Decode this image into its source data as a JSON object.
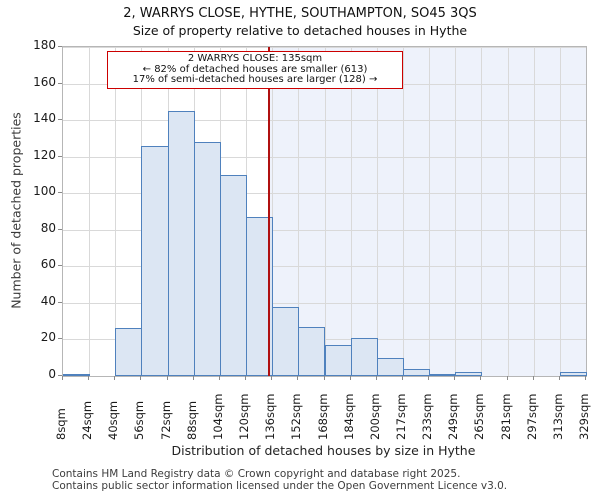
{
  "header": {
    "title": "2, WARRYS CLOSE, HYTHE, SOUTHAMPTON, SO45 3QS",
    "subtitle": "Size of property relative to detached houses in Hythe"
  },
  "annotation": {
    "lines": [
      "2 WARRYS CLOSE: 135sqm",
      "← 82% of detached houses are smaller (613)",
      "17% of semi-detached houses are larger (128) →"
    ]
  },
  "footer": {
    "line1": "Contains HM Land Registry data © Crown copyright and database right 2025.",
    "line2": "Contains public sector information licensed under the Open Government Licence v3.0."
  },
  "chart_data": {
    "type": "bar",
    "title": "2, WARRYS CLOSE, HYTHE, SOUTHAMPTON, SO45 3QS",
    "subtitle": "Size of property relative to detached houses in Hythe",
    "xlabel": "Distribution of detached houses by size in Hythe",
    "ylabel": "Number of detached properties",
    "bin_edges": [
      "8sqm",
      "24sqm",
      "40sqm",
      "56sqm",
      "72sqm",
      "88sqm",
      "104sqm",
      "120sqm",
      "136sqm",
      "152sqm",
      "168sqm",
      "184sqm",
      "200sqm",
      "217sqm",
      "233sqm",
      "249sqm",
      "265sqm",
      "281sqm",
      "297sqm",
      "313sqm",
      "329sqm"
    ],
    "values": [
      1,
      0,
      26,
      126,
      145,
      128,
      110,
      87,
      38,
      27,
      17,
      21,
      10,
      4,
      1,
      2,
      0,
      0,
      0,
      2
    ],
    "ylim": [
      0,
      180
    ],
    "ytick_step": 20,
    "grid": true,
    "marker": {
      "label": "135sqm",
      "fraction": 0.394
    },
    "colors": {
      "bar_fill": "#dce6f3",
      "bar_border": "#4f81bd",
      "grid": "#d9d9d9",
      "marker_line": "#b01010",
      "annotation_border": "#cc0000",
      "highlight_bg": "#eef2fb"
    }
  }
}
